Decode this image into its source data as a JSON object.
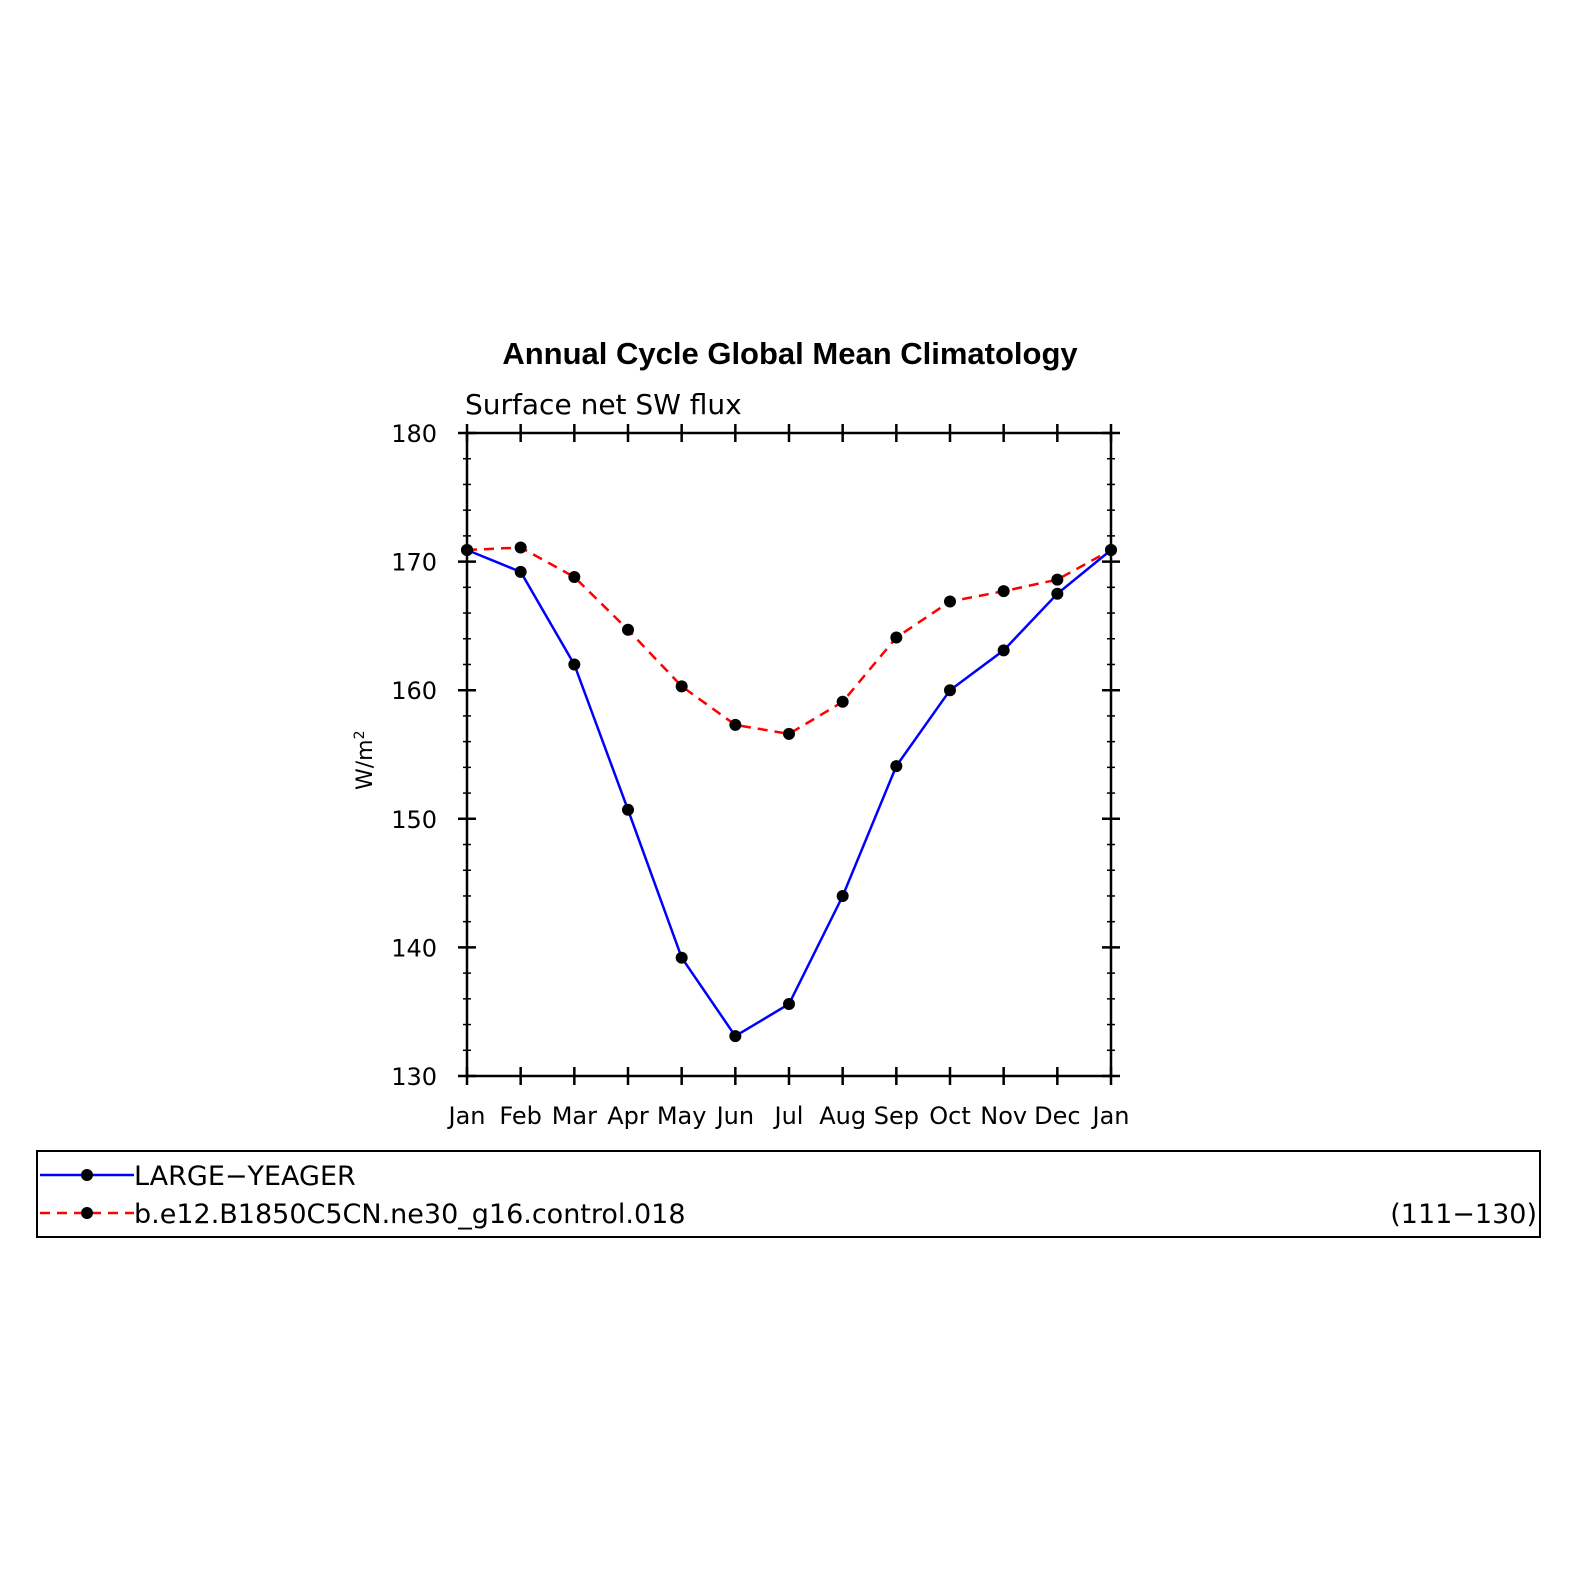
{
  "chart_data": {
    "type": "line",
    "title": "Annual Cycle Global Mean Climatology",
    "subtitle": "Surface net SW flux",
    "ylabel_main": "W/m",
    "ylabel_sup": "2",
    "categories": [
      "Jan",
      "Feb",
      "Mar",
      "Apr",
      "May",
      "Jun",
      "Jul",
      "Aug",
      "Sep",
      "Oct",
      "Nov",
      "Dec",
      "Jan"
    ],
    "ylim": [
      130,
      180
    ],
    "yticks": [
      130,
      140,
      150,
      160,
      170,
      180
    ],
    "series": [
      {
        "name": "LARGE−YEAGER",
        "color": "#0000ff",
        "dash": "solid",
        "values": [
          170.9,
          169.2,
          162.0,
          150.7,
          139.2,
          133.1,
          135.6,
          144.0,
          154.1,
          160.0,
          163.1,
          167.5,
          170.9
        ]
      },
      {
        "name": "b.e12.B1850C5CN.ne30_g16.control.018",
        "color": "#ff0000",
        "dash": "dashed",
        "values": [
          170.9,
          171.1,
          168.8,
          164.7,
          160.3,
          157.3,
          156.6,
          159.1,
          164.1,
          166.9,
          167.7,
          168.6,
          170.9
        ]
      }
    ],
    "legend_note": "(111−130)",
    "legend_position": "below"
  }
}
